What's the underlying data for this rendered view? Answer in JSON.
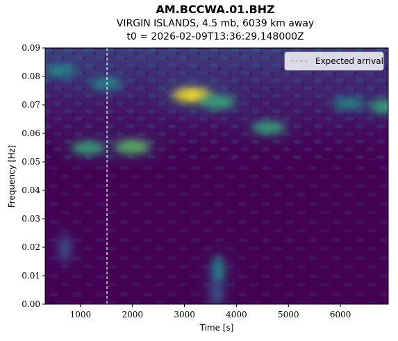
{
  "chart_data": {
    "type": "heatmap",
    "title": "AM.BCCWA.01.BHZ",
    "subtitle": "VIRGIN ISLANDS, 4.5 mb, 6039 km away",
    "t0_label": "t0 = 2026-02-09T13:36:29.148000Z",
    "xlabel": "Time [s]",
    "ylabel": "Frequency [Hz]",
    "xlim": [
      320,
      6920
    ],
    "ylim": [
      0.0,
      0.09
    ],
    "xticks": [
      1000,
      2000,
      3000,
      4000,
      5000,
      6000
    ],
    "xtick_labels": [
      "1000",
      "2000",
      "3000",
      "4000",
      "5000",
      "6000"
    ],
    "yticks": [
      0.0,
      0.01,
      0.02,
      0.03,
      0.04,
      0.05,
      0.06,
      0.07,
      0.08,
      0.09
    ],
    "ytick_labels": [
      "0.00",
      "0.01",
      "0.02",
      "0.03",
      "0.04",
      "0.05",
      "0.06",
      "0.07",
      "0.08",
      "0.09"
    ],
    "colormap": "viridis",
    "expected_arrival": 1510,
    "legend": {
      "entries": [
        "Expected arrival"
      ],
      "position": "top-right"
    },
    "hotspots": [
      {
        "t": 3150,
        "f": 0.0735,
        "intensity": 1.0
      },
      {
        "t": 2000,
        "f": 0.0553,
        "intensity": 0.75
      },
      {
        "t": 1150,
        "f": 0.0549,
        "intensity": 0.6
      },
      {
        "t": 3650,
        "f": 0.071,
        "intensity": 0.6
      },
      {
        "t": 4620,
        "f": 0.062,
        "intensity": 0.55
      },
      {
        "t": 6880,
        "f": 0.0695,
        "intensity": 0.6
      },
      {
        "t": 620,
        "f": 0.082,
        "intensity": 0.5
      },
      {
        "t": 1500,
        "f": 0.0775,
        "intensity": 0.45
      },
      {
        "t": 6150,
        "f": 0.0705,
        "intensity": 0.45
      },
      {
        "t": 3650,
        "f": 0.012,
        "intensity": 0.5
      },
      {
        "t": 3620,
        "f": 0.0038,
        "intensity": 0.42
      },
      {
        "t": 700,
        "f": 0.0195,
        "intensity": 0.35
      }
    ]
  },
  "colors": {
    "arrival_line": "#ffffff",
    "legend_background": "#ffffff",
    "plot_background": "#440154"
  }
}
